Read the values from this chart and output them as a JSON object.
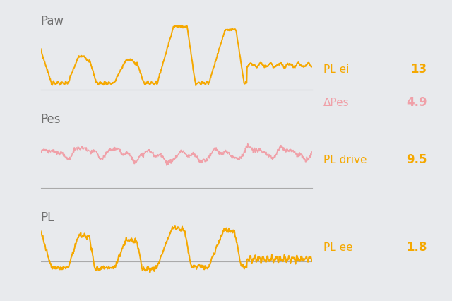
{
  "background_color": "#e8eaed",
  "orange_color": "#f5a800",
  "pink_color": "#f0a0a8",
  "dark_gray": "#707070",
  "separator_color": "#aaaaaa",
  "label_paw": "Paw",
  "label_pes": "Pes",
  "label_pl": "PL",
  "annotation_pl_ei_label": "PL ei",
  "annotation_pl_ei_value": "13",
  "annotation_delta_pes_label": "ΔPes",
  "annotation_delta_pes_value": "4.9",
  "annotation_pl_drive_label": "PL drive",
  "annotation_pl_drive_value": "9.5",
  "annotation_pl_ee_label": "PL ee",
  "annotation_pl_ee_value": "1.8",
  "figsize": [
    6.4,
    4.27
  ],
  "dpi": 100
}
